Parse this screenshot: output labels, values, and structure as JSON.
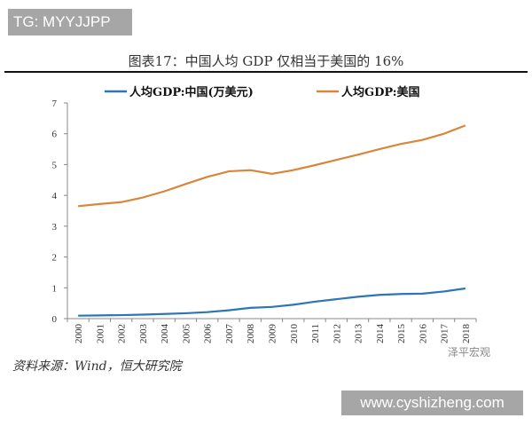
{
  "watermark_top": "TG: MYYJJPP",
  "chart_data": {
    "type": "line",
    "title": "图表17：中国人均 GDP 仅相当于美国的 16%",
    "x": [
      "2000",
      "2001",
      "2002",
      "2003",
      "2004",
      "2005",
      "2006",
      "2007",
      "2008",
      "2009",
      "2010",
      "2011",
      "2012",
      "2013",
      "2014",
      "2015",
      "2016",
      "2017",
      "2018"
    ],
    "series": [
      {
        "name": "人均GDP:中国(万美元)",
        "color": "#2e75b6",
        "values": [
          0.096,
          0.105,
          0.114,
          0.129,
          0.151,
          0.175,
          0.21,
          0.27,
          0.35,
          0.38,
          0.45,
          0.55,
          0.63,
          0.71,
          0.77,
          0.8,
          0.81,
          0.88,
          0.98
        ]
      },
      {
        "name": "人均GDP:美国",
        "color": "#d9863a",
        "values": [
          3.65,
          3.72,
          3.78,
          3.93,
          4.13,
          4.37,
          4.6,
          4.78,
          4.82,
          4.7,
          4.82,
          4.98,
          5.15,
          5.32,
          5.5,
          5.67,
          5.8,
          6.0,
          6.27
        ]
      }
    ],
    "yticks": [
      "0",
      "1",
      "2",
      "3",
      "4",
      "5",
      "6",
      "7"
    ],
    "ylim": [
      0,
      7
    ],
    "grid": false,
    "legend": "top"
  },
  "source": "资料来源：Wind，恒大研究院",
  "logo": "泽平宏观",
  "watermark_bottom": "www.cyshizheng.com"
}
